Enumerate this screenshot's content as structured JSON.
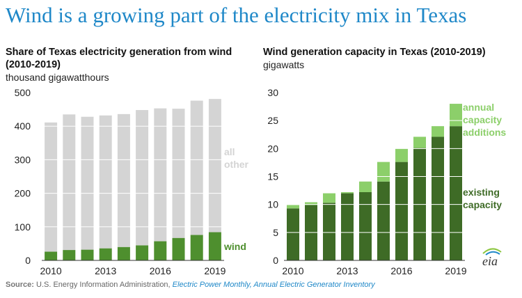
{
  "title": "Wind is a growing part of the electricity mix in Texas",
  "colors": {
    "title_blue": "#1f88c8",
    "all_other": "#d4d4d4",
    "wind": "#4e8f2e",
    "existing": "#3e6b26",
    "additions": "#8ccf6a",
    "gridline": "#ffffff"
  },
  "chart_data": [
    {
      "type": "bar",
      "stacked": true,
      "title": "Share of Texas electricity generation from wind (2010-2019)",
      "ylabel": "thousand gigawatthours",
      "x": [
        2010,
        2011,
        2012,
        2013,
        2014,
        2015,
        2016,
        2017,
        2018,
        2019
      ],
      "xtick_labels": [
        "2010",
        "2013",
        "2016",
        "2019"
      ],
      "ylim": [
        0,
        500
      ],
      "yticks": [
        0,
        100,
        200,
        300,
        400,
        500
      ],
      "series": [
        {
          "name": "wind",
          "values": [
            26,
            31,
            32,
            36,
            40,
            45,
            57,
            67,
            76,
            84
          ]
        },
        {
          "name": "all other",
          "values": [
            385,
            404,
            396,
            396,
            396,
            403,
            396,
            385,
            400,
            397
          ]
        }
      ],
      "annotations": [
        {
          "text": "all other",
          "lines": [
            "all",
            "other"
          ]
        },
        {
          "text": "wind",
          "lines": [
            "wind"
          ]
        }
      ]
    },
    {
      "type": "bar",
      "stacked": true,
      "title": "Wind generation capacity in Texas (2010-2019)",
      "ylabel": "gigawatts",
      "x": [
        2010,
        2011,
        2012,
        2013,
        2014,
        2015,
        2016,
        2017,
        2018,
        2019
      ],
      "xtick_labels": [
        "2010",
        "2013",
        "2016",
        "2019"
      ],
      "ylim": [
        0,
        30
      ],
      "yticks": [
        0,
        5,
        10,
        15,
        20,
        25,
        30
      ],
      "series": [
        {
          "name": "existing capacity",
          "values": [
            9.3,
            9.9,
            10.3,
            12.0,
            12.2,
            14.1,
            17.6,
            20.1,
            22.1,
            24.0
          ]
        },
        {
          "name": "annual capacity additions",
          "values": [
            0.6,
            0.5,
            1.7,
            0.2,
            1.9,
            3.5,
            2.4,
            2.0,
            1.9,
            4.0
          ]
        }
      ],
      "annotations": [
        {
          "text": "annual capacity additions",
          "lines": [
            "annual",
            "capacity",
            "additions"
          ]
        },
        {
          "text": "existing capacity",
          "lines": [
            "existing",
            "capacity"
          ]
        }
      ]
    }
  ],
  "source": {
    "label": "Source:",
    "text": " U.S. Energy Information Administration, ",
    "refs": "Electric Power Monthly, Annual Electric Generator Inventory"
  },
  "logo": {
    "text": "eia"
  }
}
